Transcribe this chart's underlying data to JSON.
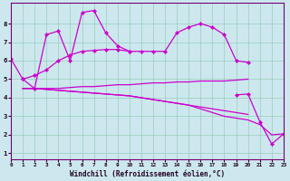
{
  "background_color": "#cce8ee",
  "plot_bg_color": "#cce8ee",
  "grid_color": "#99ccbb",
  "line_color": "#cc00cc",
  "xlabel": "Windchill (Refroidissement éolien,°C)",
  "xlim": [
    0,
    23
  ],
  "ylim": [
    0.7,
    9.1
  ],
  "yticks": [
    1,
    2,
    3,
    4,
    5,
    6,
    7,
    8
  ],
  "xticks": [
    0,
    1,
    2,
    3,
    4,
    5,
    6,
    7,
    8,
    9,
    10,
    11,
    12,
    13,
    14,
    15,
    16,
    17,
    18,
    19,
    20,
    21,
    22,
    23
  ],
  "series": [
    {
      "x": [
        0,
        1,
        2,
        3,
        4,
        5,
        6,
        7,
        8,
        9,
        10,
        11,
        12,
        13,
        14,
        15,
        16,
        17,
        18,
        19,
        20
      ],
      "y": [
        6.1,
        5.0,
        5.2,
        5.5,
        6.0,
        6.3,
        6.5,
        6.55,
        6.6,
        6.6,
        6.5,
        6.5,
        6.5,
        6.5,
        7.5,
        7.8,
        8.0,
        7.8,
        7.4,
        6.0,
        5.9
      ],
      "markers": true,
      "continuous": true
    },
    {
      "x": [
        1,
        2,
        3,
        4,
        5,
        6,
        7,
        8,
        9,
        10
      ],
      "y": [
        5.0,
        4.5,
        7.4,
        7.6,
        6.0,
        8.6,
        8.7,
        7.5,
        6.8,
        6.5
      ],
      "markers": true,
      "continuous": true
    },
    {
      "x": [
        1,
        2,
        3,
        4,
        5,
        6,
        7,
        8,
        9,
        10,
        11,
        12,
        13,
        14,
        15,
        16,
        17,
        18,
        19,
        20
      ],
      "y": [
        4.5,
        4.5,
        4.5,
        4.5,
        4.55,
        4.6,
        4.6,
        4.65,
        4.7,
        4.7,
        4.75,
        4.8,
        4.8,
        4.85,
        4.85,
        4.9,
        4.9,
        4.9,
        4.95,
        5.0
      ],
      "markers": false,
      "continuous": true
    },
    {
      "x": [
        1,
        2,
        3,
        4,
        5,
        6,
        7,
        8,
        9,
        10,
        11,
        12,
        13,
        14,
        15,
        16,
        17,
        18,
        19,
        20
      ],
      "y": [
        4.5,
        4.5,
        4.45,
        4.4,
        4.35,
        4.3,
        4.25,
        4.2,
        4.15,
        4.1,
        4.0,
        3.9,
        3.8,
        3.7,
        3.6,
        3.5,
        3.4,
        3.3,
        3.2,
        3.1
      ],
      "markers": false,
      "continuous": true
    },
    {
      "x": [
        1,
        2,
        3,
        4,
        5,
        6,
        7,
        8,
        9,
        10,
        11,
        12,
        13,
        14,
        15,
        16,
        17,
        18,
        19,
        20,
        21,
        22,
        23
      ],
      "y": [
        4.5,
        4.5,
        4.45,
        4.4,
        4.35,
        4.3,
        4.25,
        4.2,
        4.15,
        4.1,
        4.0,
        3.9,
        3.8,
        3.7,
        3.6,
        3.4,
        3.2,
        3.0,
        2.9,
        2.8,
        2.55,
        2.0,
        2.05
      ],
      "markers": false,
      "continuous": true
    },
    {
      "x": [
        19,
        20,
        21,
        22,
        23
      ],
      "y": [
        4.15,
        4.2,
        2.7,
        1.5,
        2.05
      ],
      "markers": true,
      "continuous": true
    }
  ]
}
